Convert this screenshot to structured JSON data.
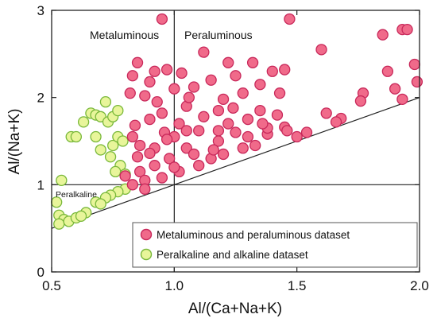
{
  "chart_data": {
    "type": "scatter",
    "xlabel": "Al/(Ca+Na+K)",
    "ylabel": "Al/(Na+K)",
    "xlim": [
      0.5,
      2.0
    ],
    "ylim": [
      0,
      3
    ],
    "xticks": [
      "0.5",
      "1.0",
      "1.5",
      "2.0"
    ],
    "yticks": [
      "0",
      "1",
      "2",
      "3"
    ],
    "grid": false,
    "legend_position": "bottom-right",
    "region_labels": {
      "metaluminous": "Metaluminous",
      "peraluminous": "Peraluminous",
      "peralkaline": "Peralkaline"
    },
    "reference_lines": [
      {
        "kind": "vertical",
        "x": 1.0
      },
      {
        "kind": "horizontal",
        "y": 1.0
      },
      {
        "kind": "line",
        "x1": 0.5,
        "y1": 0.5,
        "x2": 2.0,
        "y2": 2.0
      }
    ],
    "series": [
      {
        "name": "Metaluminous and peraluminous dataset",
        "color": "#f06a8a",
        "edge_color": "#c8285a",
        "points": [
          [
            0.95,
            2.9
          ],
          [
            1.47,
            2.9
          ],
          [
            1.6,
            2.55
          ],
          [
            1.85,
            2.72
          ],
          [
            1.93,
            2.78
          ],
          [
            1.95,
            2.78
          ],
          [
            1.87,
            2.3
          ],
          [
            1.98,
            2.38
          ],
          [
            1.99,
            2.18
          ],
          [
            1.9,
            2.1
          ],
          [
            1.93,
            1.98
          ],
          [
            1.77,
            2.05
          ],
          [
            1.76,
            1.96
          ],
          [
            1.68,
            1.76
          ],
          [
            1.62,
            1.82
          ],
          [
            1.66,
            1.72
          ],
          [
            1.54,
            1.6
          ],
          [
            1.5,
            1.55
          ],
          [
            1.45,
            1.66
          ],
          [
            1.38,
            1.58
          ],
          [
            1.45,
            2.32
          ],
          [
            1.4,
            2.3
          ],
          [
            1.43,
            2.05
          ],
          [
            1.35,
            2.15
          ],
          [
            1.32,
            2.4
          ],
          [
            1.22,
            2.4
          ],
          [
            1.12,
            2.52
          ],
          [
            1.03,
            2.28
          ],
          [
            0.97,
            2.32
          ],
          [
            0.92,
            2.3
          ],
          [
            0.9,
            2.18
          ],
          [
            0.85,
            2.4
          ],
          [
            0.83,
            2.25
          ],
          [
            0.82,
            2.05
          ],
          [
            0.88,
            2.02
          ],
          [
            1.0,
            2.1
          ],
          [
            1.08,
            2.12
          ],
          [
            1.15,
            2.2
          ],
          [
            1.25,
            2.25
          ],
          [
            1.28,
            2.05
          ],
          [
            1.2,
            1.98
          ],
          [
            1.18,
            1.85
          ],
          [
            1.05,
            1.9
          ],
          [
            0.95,
            1.82
          ],
          [
            0.9,
            1.75
          ],
          [
            0.84,
            1.68
          ],
          [
            0.83,
            1.55
          ],
          [
            0.86,
            1.45
          ],
          [
            0.92,
            1.42
          ],
          [
            1.0,
            1.55
          ],
          [
            1.1,
            1.62
          ],
          [
            1.22,
            1.7
          ],
          [
            1.3,
            1.75
          ],
          [
            1.35,
            1.85
          ],
          [
            1.42,
            1.8
          ],
          [
            1.38,
            1.65
          ],
          [
            1.3,
            1.55
          ],
          [
            1.18,
            1.5
          ],
          [
            1.05,
            1.42
          ],
          [
            0.98,
            1.3
          ],
          [
            0.92,
            1.22
          ],
          [
            0.86,
            1.15
          ],
          [
            0.85,
            1.32
          ],
          [
            0.88,
            1.05
          ],
          [
            0.95,
            1.08
          ],
          [
            1.02,
            1.15
          ],
          [
            1.1,
            1.22
          ],
          [
            1.15,
            1.3
          ],
          [
            1.2,
            1.35
          ],
          [
            1.28,
            1.42
          ],
          [
            1.33,
            1.45
          ],
          [
            0.88,
            0.95
          ],
          [
            0.83,
            1.0
          ],
          [
            0.8,
            1.1
          ],
          [
            0.96,
            1.6
          ],
          [
            1.02,
            1.7
          ],
          [
            1.12,
            1.78
          ],
          [
            1.06,
            2.0
          ],
          [
            0.93,
            1.95
          ],
          [
            1.25,
            1.6
          ],
          [
            1.36,
            1.7
          ],
          [
            1.46,
            1.62
          ],
          [
            1.16,
            1.4
          ],
          [
            1.0,
            1.2
          ],
          [
            1.24,
            1.88
          ],
          [
            0.97,
            1.52
          ],
          [
            1.08,
            1.35
          ],
          [
            0.9,
            1.36
          ],
          [
            1.05,
            1.62
          ],
          [
            1.18,
            1.62
          ]
        ]
      },
      {
        "name": "Peralkaline and alkaline dataset",
        "color": "#e8f59a",
        "edge_color": "#79b83a",
        "points": [
          [
            0.52,
            0.8
          ],
          [
            0.53,
            0.65
          ],
          [
            0.55,
            0.6
          ],
          [
            0.53,
            0.55
          ],
          [
            0.57,
            0.58
          ],
          [
            0.6,
            0.62
          ],
          [
            0.54,
            1.05
          ],
          [
            0.58,
            1.55
          ],
          [
            0.6,
            1.55
          ],
          [
            0.63,
            1.72
          ],
          [
            0.66,
            1.82
          ],
          [
            0.68,
            1.8
          ],
          [
            0.72,
            1.95
          ],
          [
            0.7,
            1.78
          ],
          [
            0.73,
            1.72
          ],
          [
            0.75,
            1.78
          ],
          [
            0.77,
            1.85
          ],
          [
            0.68,
            1.55
          ],
          [
            0.7,
            1.4
          ],
          [
            0.74,
            1.32
          ],
          [
            0.75,
            1.45
          ],
          [
            0.77,
            1.55
          ],
          [
            0.79,
            1.5
          ],
          [
            0.78,
            1.22
          ],
          [
            0.76,
            1.15
          ],
          [
            0.8,
            1.12
          ],
          [
            0.8,
            0.95
          ],
          [
            0.77,
            0.92
          ],
          [
            0.74,
            0.88
          ],
          [
            0.72,
            0.85
          ],
          [
            0.68,
            0.8
          ],
          [
            0.7,
            0.78
          ],
          [
            0.64,
            0.68
          ],
          [
            0.62,
            0.64
          ]
        ]
      }
    ]
  }
}
